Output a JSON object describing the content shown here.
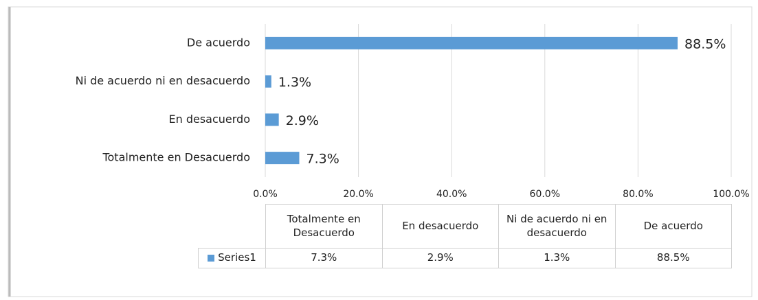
{
  "chart_data": {
    "type": "bar",
    "orientation": "horizontal",
    "categories": [
      "Totalmente en Desacuerdo",
      "En desacuerdo",
      "Ni de acuerdo ni en desacuerdo",
      "De acuerdo"
    ],
    "series": [
      {
        "name": "Series1",
        "color": "#5b9bd5",
        "values": [
          7.3,
          2.9,
          1.3,
          88.5
        ],
        "value_labels": [
          "7.3%",
          "2.9%",
          "1.3%",
          "88.5%"
        ]
      }
    ],
    "xlim": [
      0,
      100
    ],
    "xticks": [
      {
        "value": 0,
        "label": "0.0%"
      },
      {
        "value": 20,
        "label": "20.0%"
      },
      {
        "value": 40,
        "label": "40.0%"
      },
      {
        "value": 60,
        "label": "60.0%"
      },
      {
        "value": 80,
        "label": "80.0%"
      },
      {
        "value": 100,
        "label": "100.0%"
      }
    ],
    "grid": true,
    "data_table": true
  }
}
